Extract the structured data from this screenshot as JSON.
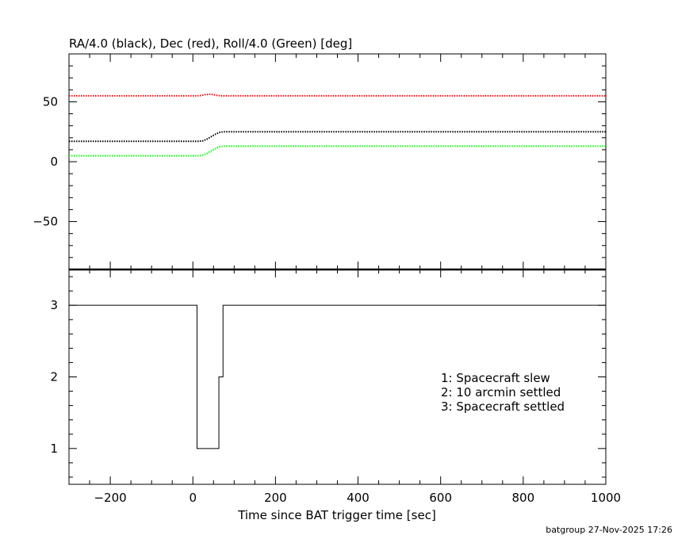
{
  "chart_data": [
    {
      "type": "line",
      "title": "RA/4.0 (black), Dec (red), Roll/4.0 (Green) [deg]",
      "xlim": [
        -300,
        1000
      ],
      "ylim": [
        -90,
        90
      ],
      "y_ticks": [
        -50,
        0,
        50
      ],
      "y_tick_labels": [
        "−50",
        "0",
        "50"
      ],
      "series": [
        {
          "color": "#000000",
          "x": [
            -300,
            15,
            25,
            35,
            45,
            55,
            65,
            75,
            1000
          ],
          "y": [
            17,
            17,
            17.5,
            19,
            21,
            23,
            24.5,
            25,
            25
          ]
        },
        {
          "color": "#ff0000",
          "x": [
            -300,
            10,
            20,
            30,
            40,
            50,
            60,
            70,
            1000
          ],
          "y": [
            55,
            55,
            55.3,
            56,
            56.3,
            56,
            55.3,
            55,
            55
          ]
        },
        {
          "color": "#00ff00",
          "x": [
            -300,
            15,
            25,
            35,
            45,
            55,
            65,
            75,
            1000
          ],
          "y": [
            5,
            5,
            5.5,
            7,
            9,
            11,
            12.5,
            13,
            13
          ]
        }
      ]
    },
    {
      "type": "line",
      "xlabel": "Time since BAT trigger time [sec]",
      "xlim": [
        -300,
        1000
      ],
      "ylim": [
        0.5,
        3.5
      ],
      "x_ticks": [
        -200,
        0,
        200,
        400,
        600,
        800,
        1000
      ],
      "x_tick_labels": [
        "−200",
        "0",
        "200",
        "400",
        "600",
        "800",
        "1000"
      ],
      "y_ticks": [
        1,
        2,
        3
      ],
      "y_tick_labels": [
        "1",
        "2",
        "3"
      ],
      "series": [
        {
          "color": "#000000",
          "step": true,
          "x": [
            -300,
            10,
            10,
            63,
            63,
            73,
            73,
            1000
          ],
          "y": [
            3,
            3,
            1,
            1,
            2,
            2,
            3,
            3
          ]
        }
      ],
      "annotations": [
        "1: Spacecraft slew",
        "2: 10 arcmin settled",
        "3: Spacecraft settled"
      ]
    }
  ],
  "footer": "batgroup 27-Nov-2025 17:26"
}
